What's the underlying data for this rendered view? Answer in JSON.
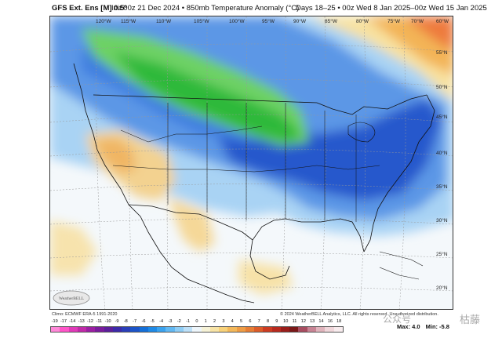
{
  "header": {
    "title": "GFS Ext. Ens [M] 0.5°",
    "subtitle": "Init 00z 21 Dec 2024 • 850mb Temperature Anomaly (°C)",
    "valid": "Days 18–25 • 00z Wed 8 Jan 2025–00z Wed 15 Jan 2025"
  },
  "longitude_labels": [
    "120°W",
    "115°W",
    "110°W",
    "105°W",
    "100°W",
    "95°W",
    "90°W",
    "85°W",
    "80°W",
    "75°W",
    "70°W",
    "60°W"
  ],
  "latitude_labels": [
    "55°N",
    "50°N",
    "45°N",
    "40°N",
    "35°N",
    "30°N",
    "25°N",
    "20°N"
  ],
  "credits": {
    "climo": "Climo: ECMWF ERA-5 1991-2020",
    "copyright": "© 2024 WeatherBELL Analytics, LLC. All rights reserved. Unauthorized distribution."
  },
  "colorbar": {
    "ticks": [
      "-19",
      "-17",
      "-14",
      "-13",
      "-12",
      "-11",
      "-10",
      "-9",
      "-8",
      "-7",
      "-6",
      "-5",
      "-4",
      "-3",
      "-2",
      "-1",
      "0",
      "1",
      "2",
      "3",
      "4",
      "5",
      "6",
      "7",
      "8",
      "9",
      "10",
      "11",
      "12",
      "13",
      "14",
      "16",
      "18"
    ],
    "colors": [
      "#ff88d8",
      "#ff55c8",
      "#e03ab8",
      "#c02aa8",
      "#9b1fa2",
      "#7a1c9c",
      "#5b1f9a",
      "#3c2aa8",
      "#2a3fb8",
      "#1c54c8",
      "#1570d8",
      "#1f8ae6",
      "#3aa2ee",
      "#62b8f2",
      "#8fcdf5",
      "#bde0f8",
      "#eef6fb",
      "#f6f2d6",
      "#f8e4a6",
      "#f8d27a",
      "#f3b85a",
      "#ee9c45",
      "#e67d35",
      "#dc5c29",
      "#cc3c22",
      "#b82a1f",
      "#9a1e1b",
      "#7a1818",
      "#a84d60",
      "#c88494",
      "#e0b4bc",
      "#f0d6da",
      "#f8ecee"
    ]
  },
  "maxmin": {
    "max_label": "Max:",
    "max_value": "4.0",
    "min_label": "Min:",
    "min_value": "-5.8"
  },
  "logo_text": "WeatherBELL",
  "watermark": {
    "left": "公众号",
    "right": "枯藤"
  },
  "colors": {
    "deep_blue": "#2151c8",
    "mid_blue": "#3f7fe0",
    "light_blue": "#9ecbf2",
    "pale_blue": "#d6ebf9",
    "green": "#2fc43a",
    "light_green": "#7fd66a",
    "warm_tan": "#f3cf8a",
    "warm_orange": "#f0a44e",
    "red_orange": "#ef6d3a"
  }
}
